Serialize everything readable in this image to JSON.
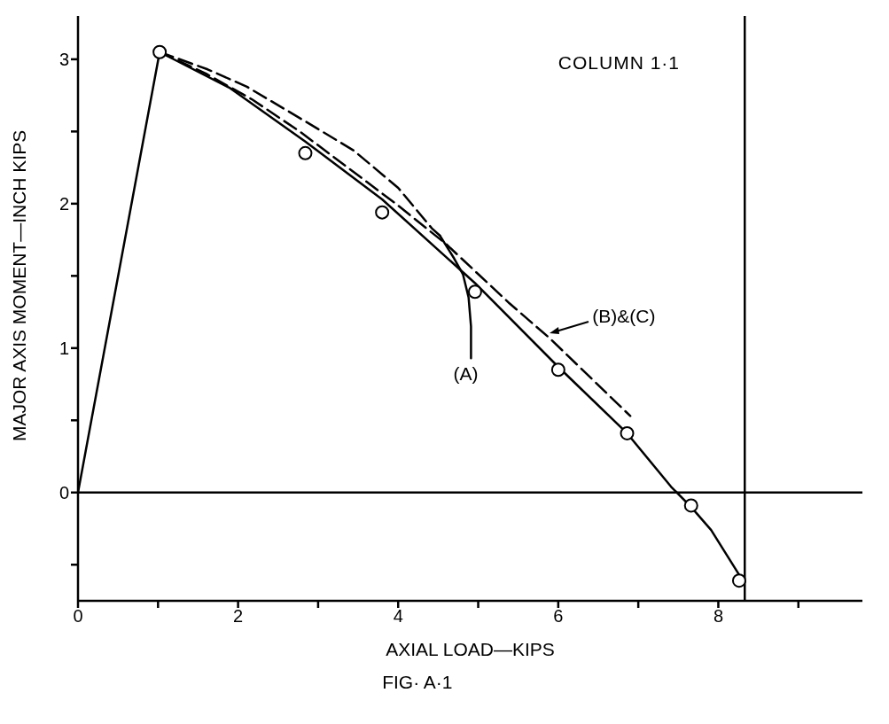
{
  "chart_data": {
    "type": "line",
    "xlabel": "AXIAL LOAD—KIPS",
    "ylabel": "MAJOR AXIS MOMENT—INCH KIPS",
    "xlim": [
      0,
      9.8
    ],
    "ylim": [
      -0.75,
      3.3
    ],
    "xticks": [
      0,
      {
        "value": 1,
        "label": null
      },
      2,
      {
        "value": 3,
        "label": null
      },
      4,
      {
        "value": 5,
        "label": null
      },
      6,
      {
        "value": 7,
        "label": null
      },
      8,
      {
        "value": 9,
        "label": null
      }
    ],
    "yticks": [
      {
        "value": -0.5,
        "label": null
      },
      0,
      {
        "value": 0.5,
        "label": null
      },
      1,
      {
        "value": 1.5,
        "label": null
      },
      2,
      {
        "value": 2.5,
        "label": null
      },
      3
    ],
    "grid": false,
    "series": [
      {
        "color": "#000000",
        "line_style": "solid",
        "x": [
          0,
          1.02,
          1.9,
          2.84,
          3.8,
          4.7,
          4.96,
          6.0,
          6.86,
          7.41,
          7.66,
          7.91,
          8.26,
          8.33
        ],
        "values": [
          0,
          3.05,
          2.8,
          2.43,
          2.03,
          1.58,
          1.45,
          0.87,
          0.41,
          0.04,
          -0.1,
          -0.26,
          -0.57,
          -0.62
        ]
      },
      {
        "color": "#000000",
        "line_style": "dashed",
        "x": [
          1.02,
          1.62,
          2.11,
          2.84,
          3.44,
          4.0,
          4.42,
          4.52
        ],
        "values": [
          3.05,
          2.93,
          2.81,
          2.57,
          2.37,
          2.11,
          1.83,
          1.78
        ]
      },
      {
        "color": "#000000",
        "line_style": "solid",
        "x": [
          4.52,
          4.7,
          4.81,
          4.88,
          4.91,
          4.91
        ],
        "values": [
          1.78,
          1.62,
          1.51,
          1.35,
          1.15,
          0.93
        ]
      },
      {
        "color": "#000000",
        "line_style": "dashed",
        "x": [
          1.02,
          1.6,
          2.18,
          2.77,
          3.37,
          3.97,
          4.6,
          5.39,
          5.89,
          6.9
        ],
        "values": [
          3.05,
          2.9,
          2.72,
          2.5,
          2.25,
          2.0,
          1.72,
          1.31,
          1.07,
          0.53
        ]
      },
      {
        "type": "scatter",
        "color": "#000000",
        "marker": "circle",
        "x": [
          1.02,
          2.84,
          3.8,
          4.96,
          6.0,
          6.86,
          7.66,
          8.26
        ],
        "values": [
          3.05,
          2.35,
          1.94,
          1.39,
          0.85,
          0.41,
          -0.09,
          -0.61
        ]
      }
    ],
    "ref_lines": [
      {
        "axis": "x",
        "value": 8.33,
        "color": "#000000"
      },
      {
        "axis": "y",
        "value": 0,
        "color": "#000000"
      }
    ],
    "annotations": [
      "COLUMN 1·1",
      {
        "text": "(A)",
        "x": 4.91,
        "y": 0.93
      },
      {
        "text": "(B)&(C)",
        "x": 5.85,
        "y": 1.1
      },
      "FIG· A·1"
    ]
  }
}
